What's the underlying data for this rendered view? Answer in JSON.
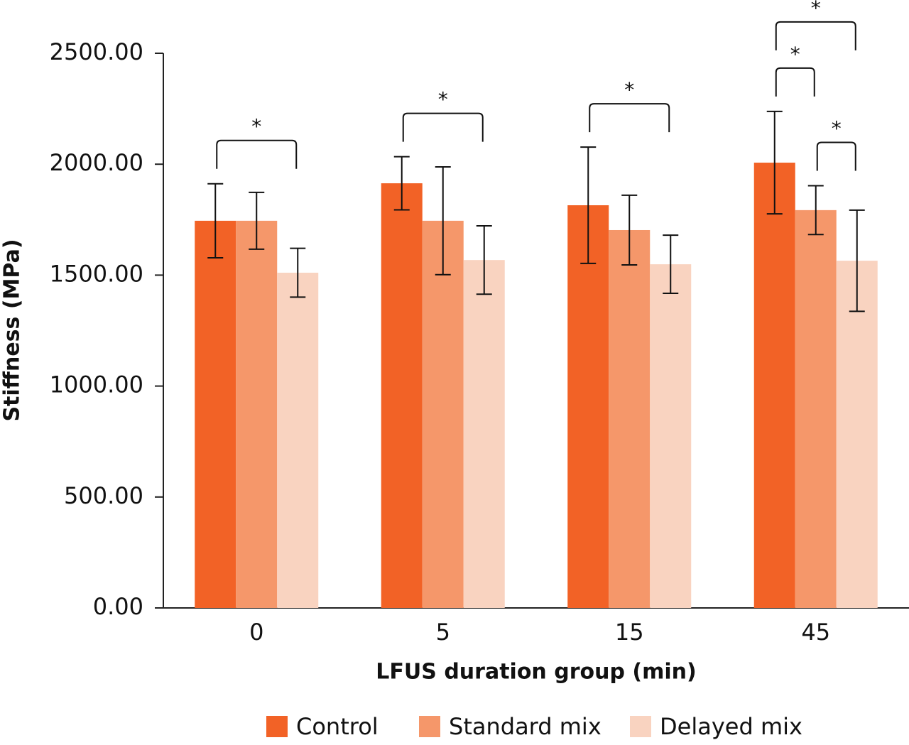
{
  "chart_data": {
    "type": "bar",
    "x_label": "LFUS duration group (min)",
    "y_label": "Stiffness (MPa)",
    "categories": [
      "0",
      "5",
      "15",
      "45"
    ],
    "series": [
      {
        "name": "Control",
        "color": "#f26226",
        "values": [
          1745,
          1914,
          1815,
          2007
        ],
        "errors": [
          167,
          120,
          262,
          231
        ]
      },
      {
        "name": "Standard mix",
        "color": "#f5976a",
        "values": [
          1745,
          1745,
          1703,
          1793
        ],
        "errors": [
          128,
          243,
          157,
          110
        ]
      },
      {
        "name": "Delayed mix",
        "color": "#f9d3c0",
        "values": [
          1511,
          1568,
          1549,
          1565
        ],
        "errors": [
          110,
          154,
          131,
          228
        ]
      }
    ],
    "ylim": [
      0,
      2500
    ],
    "yticks": [
      {
        "value": 0,
        "label": "0.00"
      },
      {
        "value": 500,
        "label": "500.00"
      },
      {
        "value": 1000,
        "label": "1000.00"
      },
      {
        "value": 1500,
        "label": "1500.00"
      },
      {
        "value": 2000,
        "label": "2000.00"
      },
      {
        "value": 2500,
        "label": "2500.00"
      }
    ],
    "annotations": [
      {
        "category": 0,
        "from": 0,
        "to": 2,
        "label": "*"
      },
      {
        "category": 1,
        "from": 0,
        "to": 2,
        "label": "*"
      },
      {
        "category": 2,
        "from": 0,
        "to": 2,
        "label": "*"
      },
      {
        "category": 3,
        "from": 1,
        "to": 2,
        "label": "*"
      },
      {
        "category": 3,
        "from": 0,
        "to": 1,
        "label": "*"
      },
      {
        "category": 3,
        "from": 0,
        "to": 2,
        "label": "*"
      }
    ]
  }
}
